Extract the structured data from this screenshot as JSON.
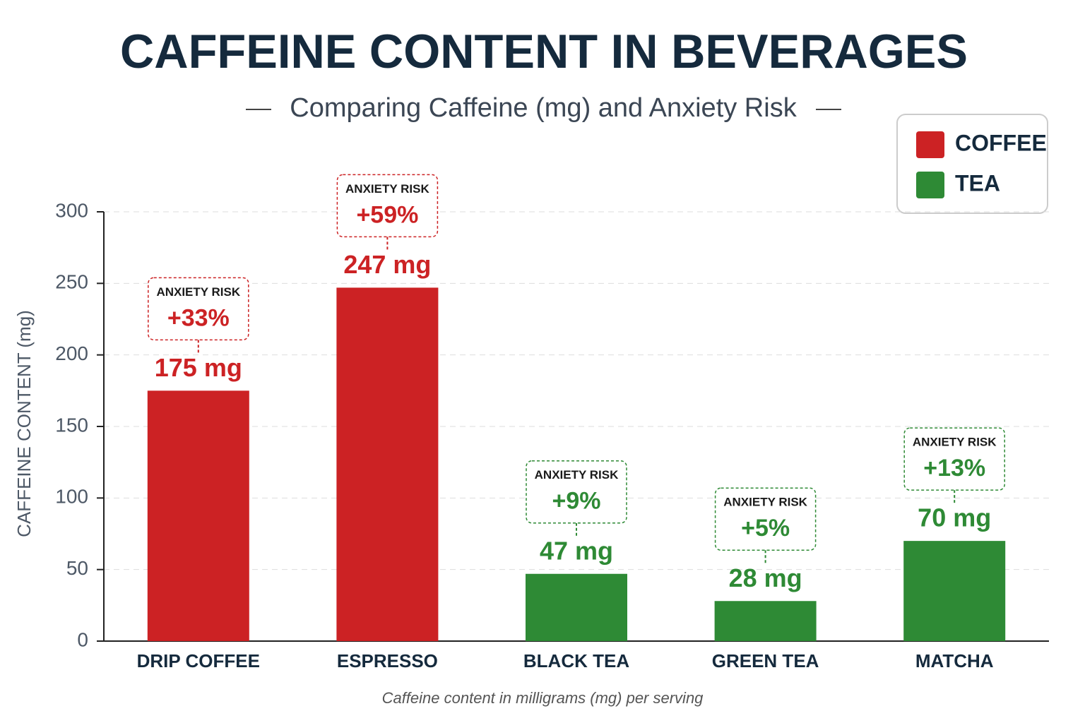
{
  "chart_data": {
    "type": "bar",
    "title": "CAFFEINE CONTENT IN BEVERAGES",
    "subtitle": "Comparing Caffeine (mg) and Anxiety Risk",
    "y_label": "CAFFEINE CONTENT (mg)",
    "note": "Caffeine content in milligrams (mg) per serving",
    "categories": [
      "DRIP COFFEE",
      "ESPRESSO",
      "BLACK TEA",
      "GREEN TEA",
      "MATCHA"
    ],
    "series": [
      {
        "name": "COFFEE",
        "color": "#cc2224",
        "values": [
          175,
          247,
          null,
          null,
          null
        ],
        "value_labels": [
          "175 mg",
          "247 mg",
          null,
          null,
          null
        ]
      },
      {
        "name": "TEA",
        "color": "#2e8a35",
        "values": [
          null,
          null,
          47,
          28,
          70
        ],
        "value_labels": [
          null,
          null,
          "47 mg",
          "28 mg",
          "70 mg"
        ]
      }
    ],
    "anxiety_risk": {
      "label": "ANXIETY RISK",
      "values": [
        33,
        59,
        9,
        5,
        13
      ],
      "value_labels": [
        "+33%",
        "+59%",
        "+9%",
        "+5%",
        "+13%"
      ]
    },
    "ylim": [
      0,
      300
    ],
    "yticks": [
      0,
      50,
      100,
      150,
      200,
      250,
      300
    ],
    "grid": true,
    "legend": "top-right"
  }
}
